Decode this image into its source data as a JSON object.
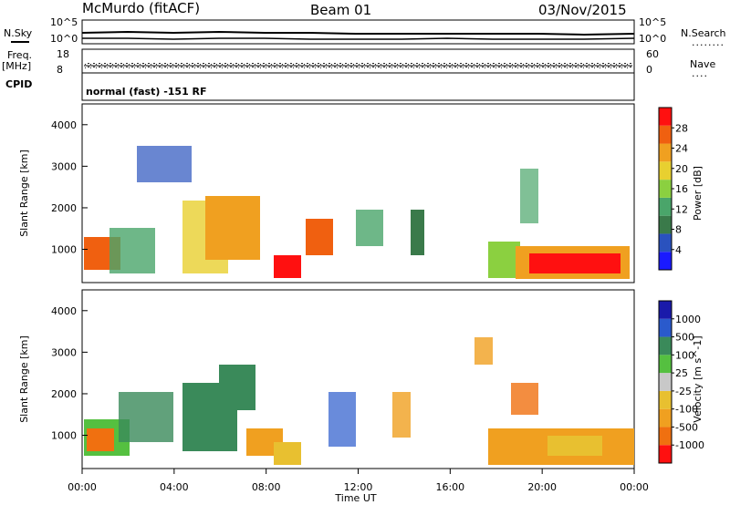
{
  "header": {
    "station": "McMurdo (fitACF)",
    "beam": "Beam 01",
    "date": "03/Nov/2015"
  },
  "left_labels": {
    "nsky": "N.Sky",
    "freq": "Freq.",
    "freq_unit": "[MHz]",
    "cpid": "CPID"
  },
  "right_labels": {
    "nsearch": "N.Search",
    "nsearch_dots": "........",
    "nave": "Nave",
    "nave_dots": "...."
  },
  "noise_panel": {
    "left_ticks": [
      "10^5",
      "10^0"
    ],
    "right_ticks": [
      "10^5",
      "10^0"
    ]
  },
  "freq_panel": {
    "left_ticks": [
      "18",
      "8"
    ],
    "right_ticks": [
      "60",
      "0"
    ]
  },
  "cpid_text": "normal (fast) -151 RF",
  "x_axis": {
    "ticks": [
      "00:00",
      "04:00",
      "08:00",
      "12:00",
      "16:00",
      "20:00",
      "00:00"
    ],
    "label": "Time UT"
  },
  "colors": {
    "power_scale": [
      "#1a1aff",
      "#2a52be",
      "#3a7a4a",
      "#4aa56a",
      "#8bd040",
      "#e8d030",
      "#f0a020",
      "#f06010",
      "#ff1010"
    ],
    "velocity_scale": [
      "#1a1aaa",
      "#2a5acc",
      "#3a8a5a",
      "#55c040",
      "#c8c8c8",
      "#e8c030",
      "#f0a020",
      "#f07010",
      "#ff1010"
    ]
  },
  "chart_data": [
    {
      "type": "heatmap",
      "title": "",
      "ylabel": "Slant Range [km]",
      "xlabel": "",
      "ylim": [
        200,
        4500
      ],
      "y_ticks": [
        "1000",
        "2000",
        "3000",
        "4000"
      ],
      "colorbar": {
        "label": "Power [dB]",
        "ticks": [
          "4",
          "8",
          "12",
          "16",
          "20",
          "24",
          "28"
        ],
        "range": [
          0,
          30
        ]
      }
    },
    {
      "type": "heatmap",
      "title": "",
      "ylabel": "Slant Range [km]",
      "xlabel": "Time UT",
      "ylim": [
        200,
        4500
      ],
      "y_ticks": [
        "1000",
        "2000",
        "3000",
        "4000"
      ],
      "colorbar": {
        "label": "Velocity [m s^-1]",
        "ticks": [
          "1000",
          "500",
          "100",
          "25",
          "-25",
          "-100",
          "-500",
          "-1000"
        ],
        "range": [
          -1000,
          1000
        ]
      }
    }
  ]
}
